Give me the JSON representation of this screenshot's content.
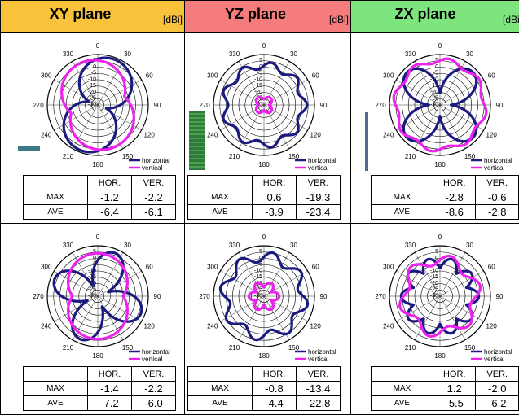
{
  "unit": "[dBi]",
  "planes": [
    {
      "name": "XY plane",
      "color": "#f9c23c"
    },
    {
      "name": "YZ plane",
      "color": "#f47c7c"
    },
    {
      "name": "ZX plane",
      "color": "#7ee57e"
    }
  ],
  "table_headers": {
    "hor": "HOR.",
    "ver": "VER.",
    "max": "MAX",
    "ave": "AVE"
  },
  "chart_data": [
    {
      "type": "polar",
      "plane": "XY plane",
      "row": 1,
      "angle_labels": [
        "0",
        "30",
        "60",
        "90",
        "120",
        "150",
        "180",
        "210",
        "240",
        "270",
        "300",
        "330"
      ],
      "radial_labels": [
        "5",
        "0",
        "-5",
        "-10",
        "-15",
        "-20",
        "-25",
        "-30"
      ],
      "legend": [
        "horizontal",
        "vertical"
      ],
      "rlim": [
        -30,
        5
      ],
      "stats": {
        "hor_max": "-1.2",
        "ver_max": "-2.2",
        "hor_ave": "-6.4",
        "ver_ave": "-6.1"
      }
    },
    {
      "type": "polar",
      "plane": "YZ plane",
      "row": 1,
      "angle_labels": [
        "0",
        "30",
        "60",
        "90",
        "120",
        "150",
        "180",
        "210",
        "240",
        "270",
        "300",
        "330"
      ],
      "radial_labels": [
        "5",
        "0",
        "-5",
        "-10",
        "-15",
        "-20",
        "-25",
        "-30"
      ],
      "legend": [
        "horizontal",
        "vertical"
      ],
      "rlim": [
        -30,
        5
      ],
      "stats": {
        "hor_max": "0.6",
        "ver_max": "-19.3",
        "hor_ave": "-3.9",
        "ver_ave": "-23.4"
      }
    },
    {
      "type": "polar",
      "plane": "ZX plane",
      "row": 1,
      "angle_labels": [
        "0",
        "30",
        "60",
        "90",
        "120",
        "150",
        "180",
        "210",
        "240",
        "270",
        "300",
        "330"
      ],
      "radial_labels": [
        "5",
        "0",
        "-5",
        "-10",
        "-15",
        "-20",
        "-25",
        "-30"
      ],
      "legend": [
        "horizontal",
        "vertical"
      ],
      "rlim": [
        -30,
        5
      ],
      "stats": {
        "hor_max": "-2.8",
        "ver_max": "-0.6",
        "hor_ave": "-8.6",
        "ver_ave": "-2.8"
      }
    },
    {
      "type": "polar",
      "plane": "XY plane",
      "row": 2,
      "angle_labels": [
        "0",
        "30",
        "60",
        "90",
        "120",
        "150",
        "180",
        "210",
        "240",
        "270",
        "300",
        "330"
      ],
      "radial_labels": [
        "5",
        "0",
        "-5",
        "-10",
        "-15",
        "-20",
        "-25",
        "-30"
      ],
      "legend": [
        "horizontal",
        "vertical"
      ],
      "rlim": [
        -30,
        5
      ],
      "stats": {
        "hor_max": "-1.4",
        "ver_max": "-2.2",
        "hor_ave": "-7.2",
        "ver_ave": "-6.0"
      }
    },
    {
      "type": "polar",
      "plane": "YZ plane",
      "row": 2,
      "angle_labels": [
        "0",
        "30",
        "60",
        "90",
        "120",
        "150",
        "180",
        "210",
        "240",
        "270",
        "300",
        "330"
      ],
      "radial_labels": [
        "5",
        "0",
        "-5",
        "-10",
        "-15",
        "-20",
        "-25",
        "-30"
      ],
      "legend": [
        "horizontal",
        "vertical"
      ],
      "rlim": [
        -30,
        5
      ],
      "stats": {
        "hor_max": "-0.8",
        "ver_max": "-13.4",
        "hor_ave": "-4.4",
        "ver_ave": "-22.8"
      }
    },
    {
      "type": "polar",
      "plane": "ZX plane",
      "row": 2,
      "angle_labels": [
        "0",
        "30",
        "60",
        "90",
        "120",
        "150",
        "180",
        "210",
        "240",
        "270",
        "300",
        "330"
      ],
      "radial_labels": [
        "5",
        "0",
        "-5",
        "-10",
        "-15",
        "-20",
        "-25",
        "-30"
      ],
      "legend": [
        "horizontal",
        "vertical"
      ],
      "rlim": [
        -30,
        5
      ],
      "stats": {
        "hor_max": "1.2",
        "ver_max": "-2.0",
        "hor_ave": "-5.5",
        "ver_ave": "-6.2"
      }
    }
  ],
  "colors": {
    "horizontal": "#1a1a80",
    "vertical": "#ee22ee"
  }
}
